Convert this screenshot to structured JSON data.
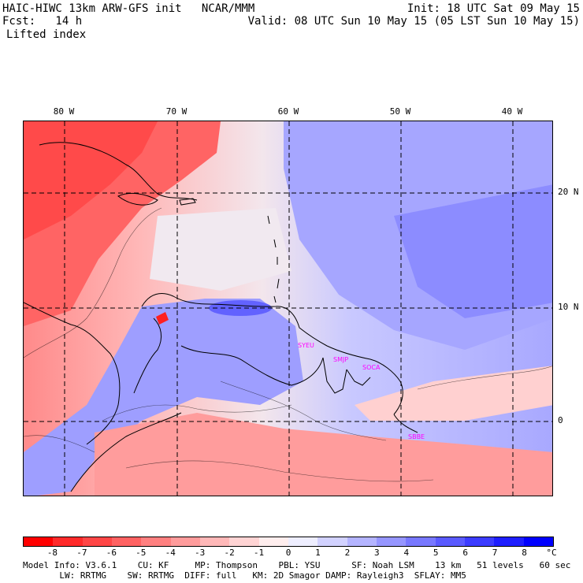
{
  "header": {
    "model_line": "HAIC-HIWC 13km ARW-GFS init   NCAR/MMM",
    "fcst_line": "Fcst:   14 h",
    "field_name": "Lifted index",
    "init_line": "Init: 18 UTC Sat 09 May 15",
    "valid_line": "Valid: 08 UTC Sun 10 May 15 (05 LST Sun 10 May 15)"
  },
  "map": {
    "lon_labels": [
      "80 W",
      "70 W",
      "60 W",
      "50 W",
      "40 W"
    ],
    "lat_labels": [
      "20 N",
      "10 N",
      "0"
    ],
    "station_labels": [
      "SYEU",
      "SMJP",
      "SOCA",
      "SBBE"
    ],
    "station_color": "#ff00ff",
    "grid_color": "#000000"
  },
  "colorbar": {
    "tick_labels": [
      "-8",
      "-7",
      "-6",
      "-5",
      "-4",
      "-3",
      "-2",
      "-1",
      "0",
      "1",
      "2",
      "3",
      "4",
      "5",
      "6",
      "7",
      "8"
    ],
    "unit": "°C",
    "colors": [
      "#ff0000",
      "#ff2a2a",
      "#ff4646",
      "#ff6262",
      "#ff8080",
      "#ff9c9c",
      "#ffb8b8",
      "#ffd4d4",
      "#ffeeee",
      "#eeeeff",
      "#d2d2ff",
      "#b4b4ff",
      "#9696ff",
      "#7878ff",
      "#5a5aff",
      "#3c3cff",
      "#1e1eff",
      "#0000ff"
    ]
  },
  "footer": {
    "line1": "Model Info: V3.6.1    CU: KF     MP: Thompson    PBL: YSU      SF: Noah LSM    13 km   51 levels   60 sec",
    "line2": "       LW: RRTMG    SW: RRTMG  DIFF: full   KM: 2D Smagor DAMP: Rayleigh3  SFLAY: MM5"
  }
}
